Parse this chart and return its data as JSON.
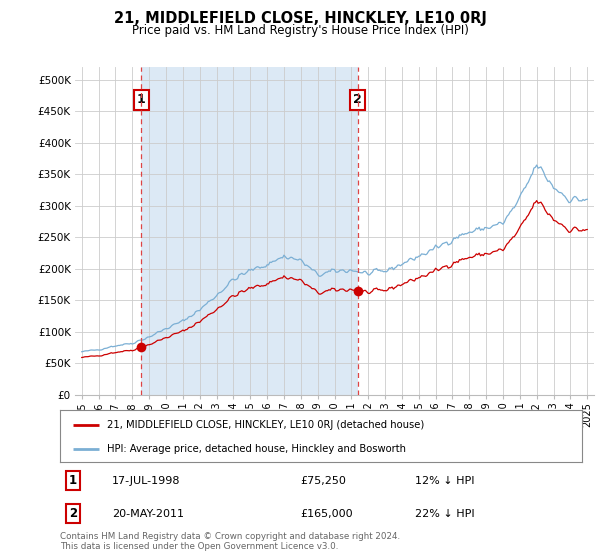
{
  "title": "21, MIDDLEFIELD CLOSE, HINCKLEY, LE10 0RJ",
  "subtitle": "Price paid vs. HM Land Registry's House Price Index (HPI)",
  "legend_line1": "21, MIDDLEFIELD CLOSE, HINCKLEY, LE10 0RJ (detached house)",
  "legend_line2": "HPI: Average price, detached house, Hinckley and Bosworth",
  "sale1_date": "17-JUL-1998",
  "sale1_price": "£75,250",
  "sale1_hpi": "12% ↓ HPI",
  "sale2_date": "20-MAY-2011",
  "sale2_price": "£165,000",
  "sale2_hpi": "22% ↓ HPI",
  "footnote": "Contains HM Land Registry data © Crown copyright and database right 2024.\nThis data is licensed under the Open Government Licence v3.0.",
  "red_color": "#cc0000",
  "blue_color": "#7bafd4",
  "blue_fill_color": "#dce9f5",
  "background_color": "#ffffff",
  "grid_color": "#cccccc",
  "ylim": [
    0,
    520000
  ],
  "yticks": [
    0,
    50000,
    100000,
    150000,
    200000,
    250000,
    300000,
    350000,
    400000,
    450000,
    500000
  ],
  "xlim_start": 1994.6,
  "xlim_end": 2025.4,
  "sale1_year": 1998.54,
  "sale2_year": 2011.37,
  "sale1_price_val": 75250,
  "sale2_price_val": 165000
}
